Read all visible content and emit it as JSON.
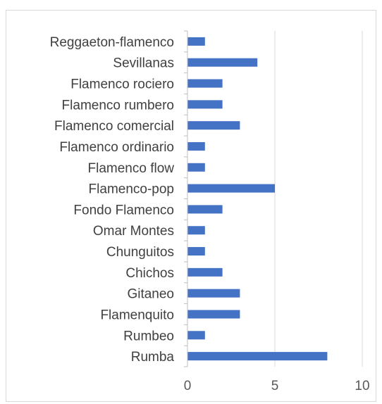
{
  "chart_data": {
    "type": "bar",
    "orientation": "horizontal",
    "categories": [
      "Reggaeton-flamenco",
      "Sevillanas",
      "Flamenco rociero",
      "Flamenco rumbero",
      "Flamenco comercial",
      "Flamenco ordinario",
      "Flamenco flow",
      "Flamenco-pop",
      "Fondo Flamenco",
      "Omar Montes",
      "Chunguitos",
      "Chichos",
      "Gitaneo",
      "Flamenquito",
      "Rumbeo",
      "Rumba"
    ],
    "values": [
      1,
      4,
      2,
      2,
      3,
      1,
      1,
      5,
      2,
      1,
      1,
      2,
      3,
      3,
      1,
      8
    ],
    "xlim": [
      0,
      10
    ],
    "x_ticks": [
      "0",
      "5",
      "10"
    ],
    "grid": "vertical",
    "legend": "none",
    "bar_color": "#4472C4",
    "grid_color": "#D9D9D9",
    "axis_color": "#BFBFBF"
  }
}
